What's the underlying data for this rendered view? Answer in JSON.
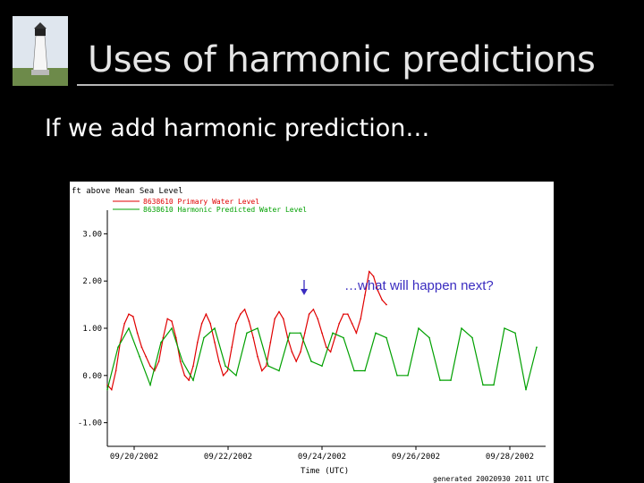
{
  "slide": {
    "title": "Uses of harmonic predictions",
    "subtitle": "If we add harmonic prediction…"
  },
  "chart_data": {
    "type": "line",
    "ylabel": "ft above Mean Sea Level",
    "xlabel": "Time (UTC)",
    "x_ticks": [
      "09/20/2002",
      "09/22/2002",
      "09/24/2002",
      "09/26/2002",
      "09/28/2002"
    ],
    "y_ticks": [
      "3.00",
      "2.00",
      "1.00",
      "0.00",
      "-1.00"
    ],
    "xlim": [
      0,
      10
    ],
    "ylim": [
      -1.5,
      3.5
    ],
    "series": [
      {
        "name": "8638610 Primary Water Level",
        "color": "#e00000",
        "x": [
          0,
          0.1,
          0.2,
          0.3,
          0.4,
          0.5,
          0.6,
          0.7,
          0.8,
          0.9,
          1.0,
          1.1,
          1.2,
          1.3,
          1.4,
          1.5,
          1.6,
          1.7,
          1.8,
          1.9,
          2.0,
          2.1,
          2.2,
          2.3,
          2.4,
          2.5,
          2.6,
          2.7,
          2.8,
          2.9,
          3.0,
          3.1,
          3.2,
          3.3,
          3.4,
          3.5,
          3.6,
          3.7,
          3.8,
          3.9,
          4.0,
          4.1,
          4.2,
          4.3,
          4.4,
          4.5,
          4.6,
          4.7,
          4.8,
          4.9,
          5.0,
          5.1,
          5.2,
          5.3,
          5.4,
          5.5,
          5.6,
          5.7,
          5.8,
          5.9,
          6.0,
          6.1,
          6.2,
          6.3,
          6.4,
          6.5
        ],
        "values": [
          -0.2,
          -0.3,
          0.1,
          0.7,
          1.1,
          1.3,
          1.25,
          0.9,
          0.6,
          0.4,
          0.2,
          0.1,
          0.3,
          0.8,
          1.2,
          1.15,
          0.8,
          0.3,
          0.0,
          -0.1,
          0.2,
          0.7,
          1.1,
          1.3,
          1.1,
          0.7,
          0.3,
          0.0,
          0.1,
          0.6,
          1.1,
          1.3,
          1.4,
          1.15,
          0.8,
          0.4,
          0.1,
          0.2,
          0.7,
          1.2,
          1.35,
          1.2,
          0.8,
          0.5,
          0.3,
          0.5,
          0.9,
          1.3,
          1.4,
          1.2,
          0.9,
          0.6,
          0.5,
          0.8,
          1.1,
          1.3,
          1.3,
          1.1,
          0.9,
          1.2,
          1.7,
          2.2,
          2.1,
          1.8,
          1.6,
          1.5
        ]
      },
      {
        "name": "8638610 Harmonic Predicted Water Level",
        "color": "#00a000",
        "x": [
          0,
          0.25,
          0.5,
          0.75,
          1.0,
          1.25,
          1.5,
          1.75,
          2.0,
          2.25,
          2.5,
          2.75,
          3.0,
          3.25,
          3.5,
          3.75,
          4.0,
          4.25,
          4.5,
          4.75,
          5.0,
          5.25,
          5.5,
          5.75,
          6.0,
          6.25,
          6.5,
          6.75,
          7.0,
          7.25,
          7.5,
          7.75,
          8.0,
          8.25,
          8.5,
          8.75,
          9.0,
          9.25,
          9.5,
          9.75,
          10.0
        ],
        "values": [
          -0.3,
          0.6,
          1.0,
          0.4,
          -0.2,
          0.7,
          1.0,
          0.3,
          -0.1,
          0.8,
          1.0,
          0.2,
          0.0,
          0.9,
          1.0,
          0.2,
          0.1,
          0.9,
          0.9,
          0.3,
          0.2,
          0.9,
          0.8,
          0.1,
          0.1,
          0.9,
          0.8,
          0.0,
          0.0,
          1.0,
          0.8,
          -0.1,
          -0.1,
          1.0,
          0.8,
          -0.2,
          -0.2,
          1.0,
          0.9,
          -0.3,
          0.6
        ]
      }
    ],
    "annotations": [
      {
        "text": "…what will happen next?",
        "color": "#3a2cc0"
      }
    ],
    "footer": "generated 20020930 2011 UTC",
    "grid": false
  }
}
